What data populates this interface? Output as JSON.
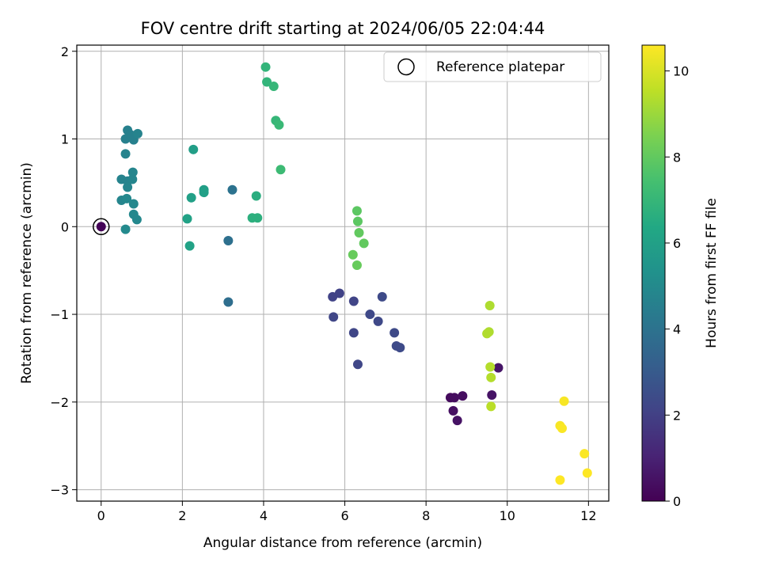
{
  "chart_data": {
    "type": "scatter",
    "title": "FOV centre drift starting at 2024/06/05 22:04:44",
    "xlabel": "Angular distance from reference (arcmin)",
    "ylabel": "Rotation from reference (arcmin)",
    "xlim": [
      -0.6,
      12.5
    ],
    "ylim": [
      -3.13,
      2.07
    ],
    "xticks": [
      0,
      2,
      4,
      6,
      8,
      10,
      12
    ],
    "yticks": [
      -3,
      -2,
      -1,
      0,
      1,
      2
    ],
    "grid": true,
    "legend": {
      "placement": "top-right",
      "entries": [
        "Reference platepar"
      ]
    },
    "colorbar": {
      "label": "Hours from first FF file",
      "colormap": "viridis",
      "range": [
        0,
        10.6
      ],
      "ticks": [
        0,
        2,
        4,
        6,
        8,
        10
      ]
    },
    "reference_point": {
      "x": 0,
      "y": 0,
      "hours": 0
    },
    "points": [
      {
        "x": 0.0,
        "y": 0.0,
        "hours": 0.1
      },
      {
        "x": 8.6,
        "y": -1.95,
        "hours": 0.3
      },
      {
        "x": 8.7,
        "y": -1.95,
        "hours": 0.35
      },
      {
        "x": 8.9,
        "y": -1.93,
        "hours": 0.4
      },
      {
        "x": 8.67,
        "y": -2.1,
        "hours": 0.45
      },
      {
        "x": 8.77,
        "y": -2.21,
        "hours": 0.5
      },
      {
        "x": 9.62,
        "y": -1.92,
        "hours": 0.55
      },
      {
        "x": 9.78,
        "y": -1.61,
        "hours": 0.6
      },
      {
        "x": 5.7,
        "y": -0.8,
        "hours": 2.1
      },
      {
        "x": 5.87,
        "y": -0.76,
        "hours": 2.1
      },
      {
        "x": 6.22,
        "y": -0.85,
        "hours": 2.15
      },
      {
        "x": 5.72,
        "y": -1.03,
        "hours": 2.2
      },
      {
        "x": 6.22,
        "y": -1.21,
        "hours": 2.2
      },
      {
        "x": 6.32,
        "y": -1.57,
        "hours": 2.25
      },
      {
        "x": 6.62,
        "y": -1.0,
        "hours": 2.3
      },
      {
        "x": 6.82,
        "y": -1.08,
        "hours": 2.3
      },
      {
        "x": 6.92,
        "y": -0.8,
        "hours": 2.35
      },
      {
        "x": 7.22,
        "y": -1.21,
        "hours": 2.35
      },
      {
        "x": 7.27,
        "y": -1.36,
        "hours": 2.4
      },
      {
        "x": 7.36,
        "y": -1.38,
        "hours": 2.4
      },
      {
        "x": 3.13,
        "y": -0.86,
        "hours": 3.8
      },
      {
        "x": 3.13,
        "y": -0.16,
        "hours": 3.9
      },
      {
        "x": 3.23,
        "y": 0.42,
        "hours": 4.0
      },
      {
        "x": 0.6,
        "y": 1.0,
        "hours": 4.6
      },
      {
        "x": 0.65,
        "y": 1.1,
        "hours": 4.6
      },
      {
        "x": 0.72,
        "y": 1.05,
        "hours": 4.6
      },
      {
        "x": 0.8,
        "y": 0.99,
        "hours": 4.6
      },
      {
        "x": 0.9,
        "y": 1.06,
        "hours": 4.7
      },
      {
        "x": 0.6,
        "y": 0.83,
        "hours": 4.7
      },
      {
        "x": 0.5,
        "y": 0.54,
        "hours": 4.7
      },
      {
        "x": 0.65,
        "y": 0.52,
        "hours": 4.7
      },
      {
        "x": 0.78,
        "y": 0.62,
        "hours": 4.8
      },
      {
        "x": 0.77,
        "y": 0.54,
        "hours": 4.8
      },
      {
        "x": 0.65,
        "y": 0.45,
        "hours": 4.8
      },
      {
        "x": 0.5,
        "y": 0.3,
        "hours": 4.8
      },
      {
        "x": 0.63,
        "y": 0.32,
        "hours": 4.9
      },
      {
        "x": 0.8,
        "y": 0.26,
        "hours": 4.9
      },
      {
        "x": 0.8,
        "y": 0.14,
        "hours": 4.9
      },
      {
        "x": 0.88,
        "y": 0.08,
        "hours": 4.9
      },
      {
        "x": 0.6,
        "y": -0.03,
        "hours": 5.0
      },
      {
        "x": 2.27,
        "y": 0.88,
        "hours": 5.9
      },
      {
        "x": 2.53,
        "y": 0.42,
        "hours": 5.9
      },
      {
        "x": 2.53,
        "y": 0.39,
        "hours": 6.0
      },
      {
        "x": 2.22,
        "y": 0.33,
        "hours": 6.0
      },
      {
        "x": 2.12,
        "y": 0.09,
        "hours": 6.1
      },
      {
        "x": 2.18,
        "y": -0.22,
        "hours": 6.1
      },
      {
        "x": 3.82,
        "y": 0.35,
        "hours": 6.6
      },
      {
        "x": 3.72,
        "y": 0.1,
        "hours": 6.7
      },
      {
        "x": 3.85,
        "y": 0.1,
        "hours": 6.7
      },
      {
        "x": 4.05,
        "y": 1.82,
        "hours": 6.9
      },
      {
        "x": 4.08,
        "y": 1.65,
        "hours": 6.9
      },
      {
        "x": 4.25,
        "y": 1.6,
        "hours": 7.0
      },
      {
        "x": 4.3,
        "y": 1.21,
        "hours": 7.0
      },
      {
        "x": 4.38,
        "y": 1.16,
        "hours": 7.1
      },
      {
        "x": 4.42,
        "y": 0.65,
        "hours": 7.2
      },
      {
        "x": 6.3,
        "y": 0.18,
        "hours": 7.9
      },
      {
        "x": 6.32,
        "y": 0.06,
        "hours": 7.9
      },
      {
        "x": 6.35,
        "y": -0.07,
        "hours": 8.0
      },
      {
        "x": 6.47,
        "y": -0.19,
        "hours": 8.0
      },
      {
        "x": 6.2,
        "y": -0.32,
        "hours": 8.1
      },
      {
        "x": 6.3,
        "y": -0.44,
        "hours": 8.1
      },
      {
        "x": 9.57,
        "y": -0.9,
        "hours": 9.3
      },
      {
        "x": 9.55,
        "y": -1.2,
        "hours": 9.3
      },
      {
        "x": 9.5,
        "y": -1.22,
        "hours": 9.35
      },
      {
        "x": 9.58,
        "y": -1.6,
        "hours": 9.4
      },
      {
        "x": 9.6,
        "y": -1.72,
        "hours": 9.4
      },
      {
        "x": 9.6,
        "y": -2.05,
        "hours": 9.5
      },
      {
        "x": 11.4,
        "y": -1.99,
        "hours": 10.5
      },
      {
        "x": 11.3,
        "y": -2.27,
        "hours": 10.5
      },
      {
        "x": 11.35,
        "y": -2.3,
        "hours": 10.55
      },
      {
        "x": 11.9,
        "y": -2.59,
        "hours": 10.55
      },
      {
        "x": 11.97,
        "y": -2.81,
        "hours": 10.6
      },
      {
        "x": 11.3,
        "y": -2.89,
        "hours": 10.6
      }
    ]
  }
}
